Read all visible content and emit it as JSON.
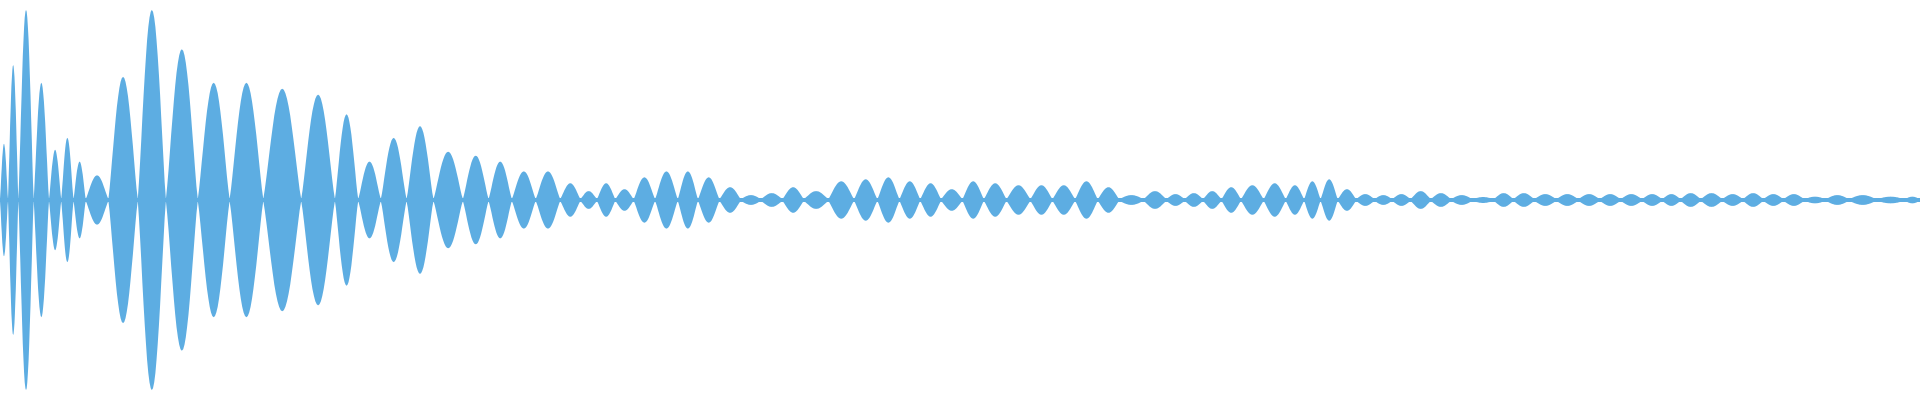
{
  "chart_data": {
    "type": "area",
    "title": "",
    "xlabel": "",
    "ylabel": "",
    "grid": false,
    "legend": "none",
    "ylim": [
      -1,
      1
    ],
    "color": "#5dade2",
    "series": [
      {
        "lobe_peak_amplitudes": [
          0.28,
          0.68,
          0.96,
          0.59,
          0.25,
          0.31,
          0.19,
          0.12,
          0.62,
          0.96,
          0.76,
          0.59,
          0.59,
          0.56,
          0.53,
          0.43,
          0.19,
          0.31,
          0.37,
          0.24,
          0.22,
          0.19,
          0.14,
          0.14,
          0.08,
          0.04,
          0.08,
          0.05,
          0.11,
          0.14,
          0.14,
          0.11,
          0.06,
          0.02,
          0.03,
          0.06,
          0.04,
          0.09,
          0.1,
          0.11,
          0.09,
          0.08,
          0.05,
          0.09,
          0.08,
          0.07,
          0.07,
          0.07,
          0.09,
          0.06,
          0.02,
          0.04,
          0.025,
          0.03,
          0.04,
          0.06,
          0.07,
          0.08,
          0.07,
          0.09,
          0.1,
          0.05,
          0.025,
          0.02,
          0.025,
          0.04,
          0.03,
          0.02,
          0.006,
          0.03,
          0.03,
          0.025,
          0.025,
          0.025,
          0.025,
          0.025,
          0.025,
          0.025,
          0.03,
          0.03,
          0.025,
          0.03,
          0.025,
          0.025,
          0.012,
          0.02,
          0.02,
          0.012,
          0.012
        ]
      }
    ]
  }
}
